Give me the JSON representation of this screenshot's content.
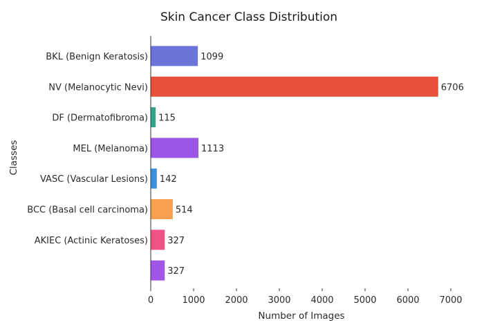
{
  "chart_data": {
    "type": "bar",
    "orientation": "horizontal",
    "title": "Skin Cancer Class Distribution",
    "xlabel": "Number of Images",
    "ylabel": "Classes",
    "categories": [
      "BKL (Benign Keratosis)",
      "NV (Melanocytic Nevi)",
      "DF (Dermatofibroma)",
      "MEL (Melanoma)",
      "VASC (Vascular Lesions)",
      "BCC (Basal cell carcinoma)",
      "AKIEC (Actinic Keratoses)",
      ""
    ],
    "values": [
      1099,
      6706,
      115,
      1113,
      142,
      514,
      327,
      327
    ],
    "value_labels": [
      "1099",
      "6706",
      "115",
      "1113",
      "142",
      "514",
      "327",
      "327"
    ],
    "colors": [
      "#6a74d9",
      "#e8503a",
      "#33a68a",
      "#9d55e6",
      "#3a92e0",
      "#f7a04f",
      "#ef5283",
      "#a156e8"
    ],
    "xlim": [
      0,
      7000
    ],
    "xticks": [
      0,
      1000,
      2000,
      3000,
      4000,
      5000,
      6000,
      7000
    ],
    "xtick_labels": [
      "0",
      "1000",
      "2000",
      "3000",
      "4000",
      "5000",
      "6000",
      "7000"
    ],
    "grid": false,
    "legend": "none"
  }
}
